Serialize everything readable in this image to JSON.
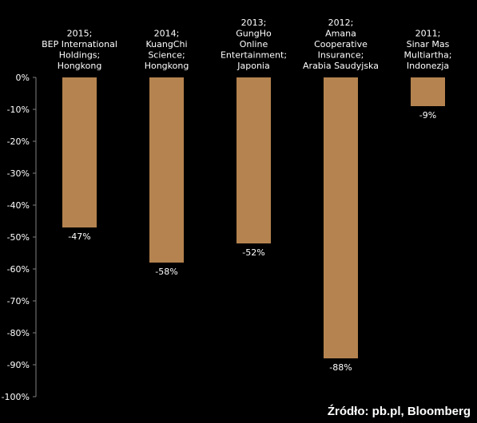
{
  "chart_data": {
    "type": "bar",
    "categories": [
      [
        "2015;",
        "BEP International",
        "Holdings;",
        "Hongkong"
      ],
      [
        "2014;",
        "KuangChi",
        "Science;",
        "Hongkong"
      ],
      [
        "2013;",
        "GungHo",
        "Online",
        "Entertainment;",
        "Japonia"
      ],
      [
        "2012;",
        "Amana",
        "Cooperative",
        "Insurance;",
        "Arabia Saudyjska"
      ],
      [
        "2011;",
        "Sinar Mas",
        "Multiartha;",
        "Indonezja"
      ]
    ],
    "values": [
      -47,
      -58,
      -52,
      -88,
      -9
    ],
    "data_labels": [
      "-47%",
      "-58%",
      "-52%",
      "-88%",
      "-9%"
    ],
    "ylim": [
      -100,
      0
    ],
    "yticks": [
      0,
      -10,
      -20,
      -30,
      -40,
      -50,
      -60,
      -70,
      -80,
      -90,
      -100
    ],
    "ytick_labels": [
      "0%",
      "-10%",
      "-20%",
      "-30%",
      "-40%",
      "-50%",
      "-60%",
      "-70%",
      "-80%",
      "-90%",
      "-100%"
    ],
    "grid": false,
    "colors": {
      "bar": "#b5834f",
      "background": "#000000",
      "text": "#ffffff",
      "axis": "#808080"
    }
  },
  "source": "Źródło: pb.pl, Bloomberg"
}
